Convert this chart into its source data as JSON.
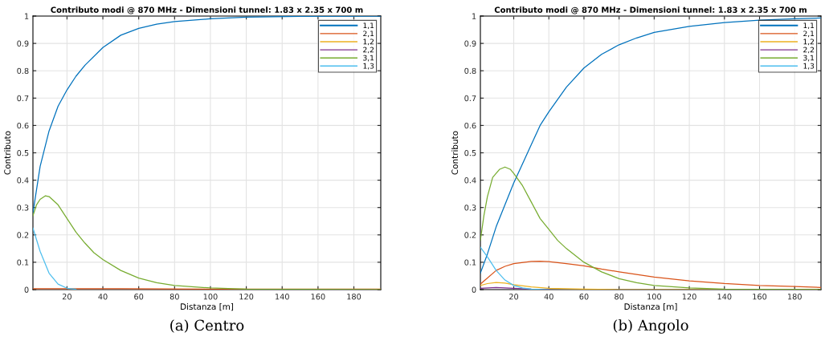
{
  "chart_data": [
    {
      "type": "line",
      "title": "Contributo modi @ 870 MHz - Dimensioni tunnel: 1.83 x 2.35 x 700 m",
      "xlabel": "Distanza [m]",
      "ylabel": "Contributo",
      "annotations": [
        "(a) Centro"
      ],
      "xlim": [
        1,
        195
      ],
      "ylim": [
        0,
        1
      ],
      "xticks": [
        20,
        40,
        60,
        80,
        100,
        120,
        140,
        160,
        180
      ],
      "yticks": [
        0,
        0.1,
        0.2,
        0.3,
        0.4,
        0.5,
        0.6,
        0.7,
        0.8,
        0.9,
        1
      ],
      "grid": true,
      "legend": "top right",
      "series": [
        {
          "name": "1,1",
          "color": "#0072bd",
          "x": [
            1,
            5,
            10,
            15,
            20,
            25,
            30,
            40,
            50,
            60,
            70,
            80,
            100,
            120,
            150,
            195
          ],
          "values": [
            0.28,
            0.45,
            0.58,
            0.67,
            0.73,
            0.78,
            0.82,
            0.885,
            0.93,
            0.955,
            0.97,
            0.98,
            0.99,
            0.996,
            0.999,
            1.0
          ]
        },
        {
          "name": "2,1",
          "color": "#d95319",
          "x": [
            1,
            50,
            100,
            195
          ],
          "values": [
            0.003,
            0.003,
            0.002,
            0.002
          ]
        },
        {
          "name": "1,2",
          "color": "#edb120"
        },
        {
          "name": "2,2",
          "color": "#7e2f8e"
        },
        {
          "name": "3,1",
          "color": "#77ac30",
          "x": [
            1,
            3,
            5,
            8,
            10,
            15,
            20,
            25,
            30,
            35,
            40,
            50,
            60,
            70,
            80,
            100,
            120,
            150,
            195
          ],
          "values": [
            0.27,
            0.31,
            0.33,
            0.343,
            0.34,
            0.31,
            0.26,
            0.21,
            0.17,
            0.135,
            0.11,
            0.07,
            0.042,
            0.025,
            0.015,
            0.006,
            0.002,
            0.001,
            0
          ]
        },
        {
          "name": "1,3",
          "color": "#4dbeee",
          "x": [
            1,
            5,
            10,
            15,
            20,
            25
          ],
          "values": [
            0.225,
            0.14,
            0.06,
            0.02,
            0.005,
            0.001
          ]
        }
      ]
    },
    {
      "type": "line",
      "title": "Contributo modi @ 870 MHz - Dimensioni tunnel: 1.83 x 2.35 x 700 m",
      "xlabel": "Distanza [m]",
      "ylabel": "Contributo",
      "annotations": [
        "(b) Angolo"
      ],
      "xlim": [
        1,
        195
      ],
      "ylim": [
        0,
        1
      ],
      "xticks": [
        20,
        40,
        60,
        80,
        100,
        120,
        140,
        160,
        180
      ],
      "yticks": [
        0,
        0.1,
        0.2,
        0.3,
        0.4,
        0.5,
        0.6,
        0.7,
        0.8,
        0.9,
        1
      ],
      "grid": true,
      "legend": "top right",
      "series": [
        {
          "name": "1,1",
          "color": "#0072bd",
          "x": [
            1,
            5,
            10,
            15,
            20,
            25,
            30,
            35,
            40,
            50,
            60,
            70,
            80,
            90,
            100,
            120,
            140,
            160,
            180,
            195
          ],
          "values": [
            0.06,
            0.13,
            0.23,
            0.31,
            0.39,
            0.46,
            0.53,
            0.6,
            0.65,
            0.74,
            0.81,
            0.86,
            0.895,
            0.92,
            0.94,
            0.962,
            0.976,
            0.985,
            0.99,
            0.993
          ]
        },
        {
          "name": "2,1",
          "color": "#d95319",
          "x": [
            1,
            10,
            15,
            20,
            30,
            35,
            40,
            50,
            60,
            70,
            80,
            100,
            120,
            140,
            160,
            180,
            195
          ],
          "values": [
            0.02,
            0.07,
            0.085,
            0.095,
            0.103,
            0.104,
            0.102,
            0.095,
            0.087,
            0.075,
            0.065,
            0.046,
            0.032,
            0.022,
            0.015,
            0.011,
            0.008
          ]
        },
        {
          "name": "1,2",
          "color": "#edb120",
          "x": [
            1,
            5,
            10,
            15,
            20,
            30,
            40,
            60,
            80,
            195
          ],
          "values": [
            0.015,
            0.022,
            0.026,
            0.024,
            0.018,
            0.01,
            0.005,
            0.002,
            0,
            0
          ]
        },
        {
          "name": "2,2",
          "color": "#7e2f8e",
          "x": [
            1,
            10,
            20,
            30,
            40
          ],
          "values": [
            0.005,
            0.008,
            0.005,
            0.002,
            0.001
          ]
        },
        {
          "name": "3,1",
          "color": "#77ac30",
          "x": [
            1,
            3,
            5,
            8,
            12,
            15,
            18,
            20,
            25,
            30,
            35,
            40,
            45,
            50,
            60,
            70,
            80,
            90,
            100,
            120,
            140,
            160,
            195
          ],
          "values": [
            0.18,
            0.27,
            0.34,
            0.41,
            0.44,
            0.448,
            0.44,
            0.425,
            0.38,
            0.32,
            0.26,
            0.22,
            0.18,
            0.15,
            0.1,
            0.065,
            0.04,
            0.025,
            0.015,
            0.006,
            0.002,
            0.001,
            0
          ]
        },
        {
          "name": "1,3",
          "color": "#4dbeee",
          "x": [
            1,
            5,
            10,
            15,
            20,
            25,
            30,
            40
          ],
          "values": [
            0.155,
            0.12,
            0.07,
            0.035,
            0.015,
            0.006,
            0.002,
            0
          ]
        }
      ]
    }
  ]
}
